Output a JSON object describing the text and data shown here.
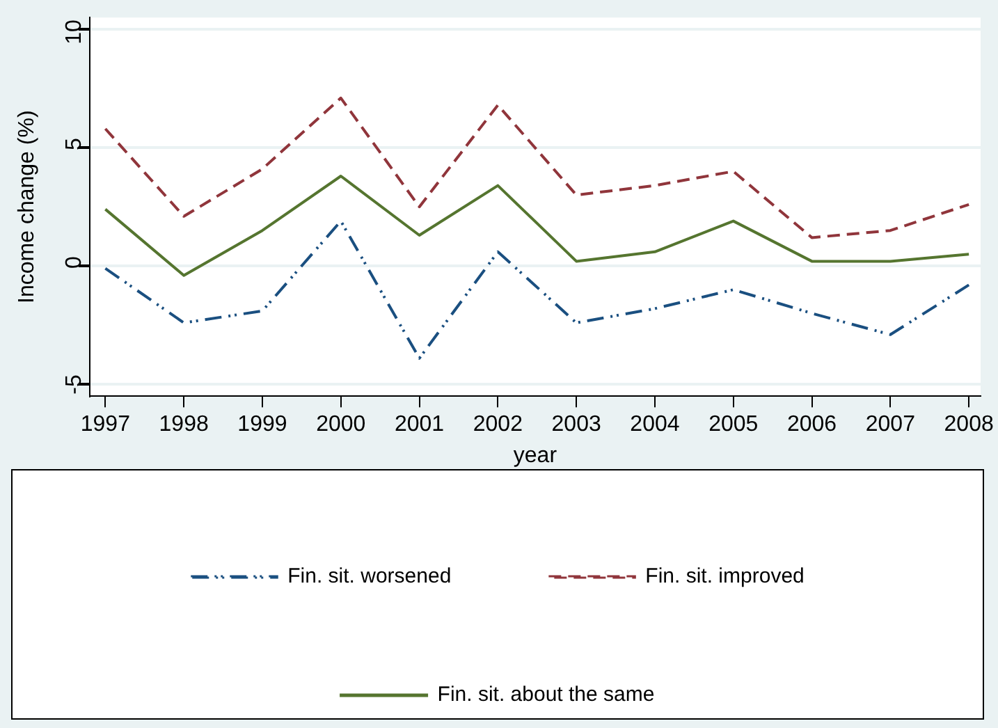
{
  "chart_data": {
    "type": "line",
    "xlabel": "year",
    "ylabel": "Income change (%)",
    "x": [
      1997,
      1998,
      1999,
      2000,
      2001,
      2002,
      2003,
      2004,
      2005,
      2006,
      2007,
      2008
    ],
    "xlim": [
      1996.8,
      2008.15
    ],
    "xticks": [
      1997,
      1998,
      1999,
      2000,
      2001,
      2002,
      2003,
      2004,
      2005,
      2006,
      2007,
      2008
    ],
    "ylim": [
      -5.5,
      10.5
    ],
    "yticks": [
      -5,
      0,
      5,
      10
    ],
    "grid": "y",
    "legend": "bottom",
    "marker": "none",
    "series": [
      {
        "name": "Fin. sit. worsened",
        "color": "#1a4f80",
        "line_style": "dashdot",
        "values": [
          -0.1,
          -2.4,
          -1.9,
          1.9,
          -3.9,
          0.6,
          -2.4,
          -1.8,
          -1.0,
          -2.0,
          -2.9,
          -0.8
        ]
      },
      {
        "name": "Fin. sit. improved",
        "color": "#90353b",
        "line_style": "dashed",
        "values": [
          5.8,
          2.1,
          4.1,
          7.1,
          2.5,
          6.8,
          3.0,
          3.4,
          4.0,
          1.2,
          1.5,
          2.6
        ]
      },
      {
        "name": "Fin. sit. about the same",
        "color": "#55752f",
        "line_style": "solid",
        "values": [
          2.4,
          -0.4,
          1.5,
          3.8,
          1.3,
          3.4,
          0.2,
          0.6,
          1.9,
          0.2,
          0.2,
          0.5
        ]
      }
    ]
  }
}
